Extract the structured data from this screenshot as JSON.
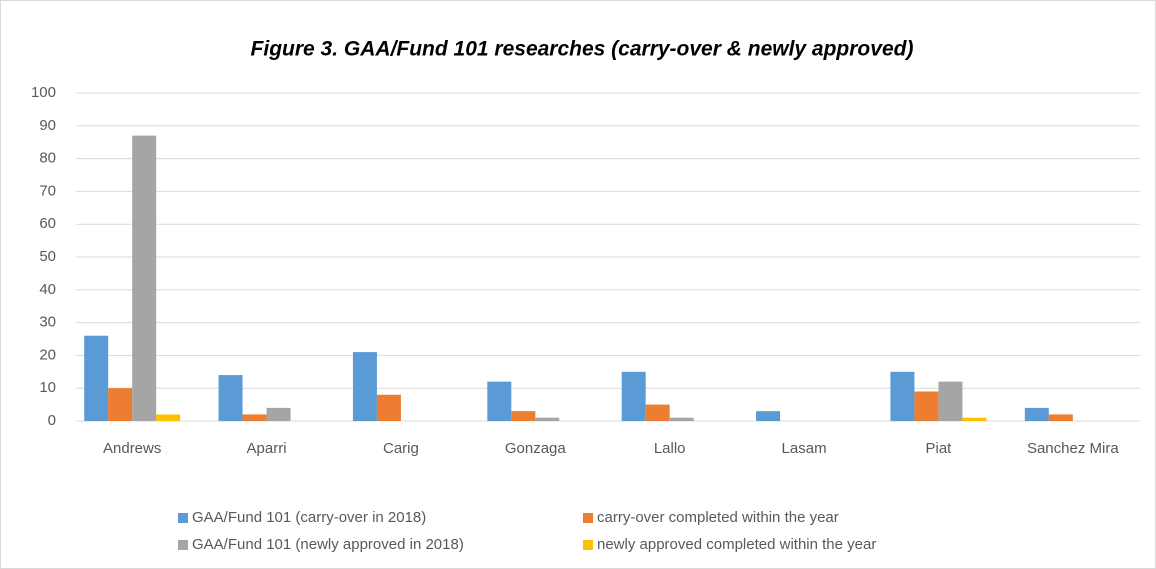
{
  "chart_data": {
    "type": "bar",
    "title": "Figure 3. GAA/Fund 101 researches (carry-over & newly approved)",
    "categories": [
      "Andrews",
      "Aparri",
      "Carig",
      "Gonzaga",
      "Lallo",
      "Lasam",
      "Piat",
      "Sanchez Mira"
    ],
    "series": [
      {
        "name": "GAA/Fund 101 (carry-over in 2018)",
        "color": "#5b9bd5",
        "values": [
          26,
          14,
          21,
          12,
          15,
          3,
          15,
          4
        ]
      },
      {
        "name": "carry-over completed within the year",
        "color": "#ed7d31",
        "values": [
          10,
          2,
          8,
          3,
          5,
          0,
          9,
          2
        ]
      },
      {
        "name": "GAA/Fund 101 (newly approved in 2018)",
        "color": "#a5a5a5",
        "values": [
          87,
          4,
          0,
          1,
          1,
          0,
          12,
          0
        ]
      },
      {
        "name": "newly approved completed within the year",
        "color": "#ffc000",
        "values": [
          2,
          0,
          0,
          0,
          0,
          0,
          1,
          0
        ]
      }
    ],
    "ylim": [
      0,
      100
    ],
    "yticks": [
      0,
      10,
      20,
      30,
      40,
      50,
      60,
      70,
      80,
      90,
      100
    ],
    "grid": true,
    "legend": "bottom"
  }
}
